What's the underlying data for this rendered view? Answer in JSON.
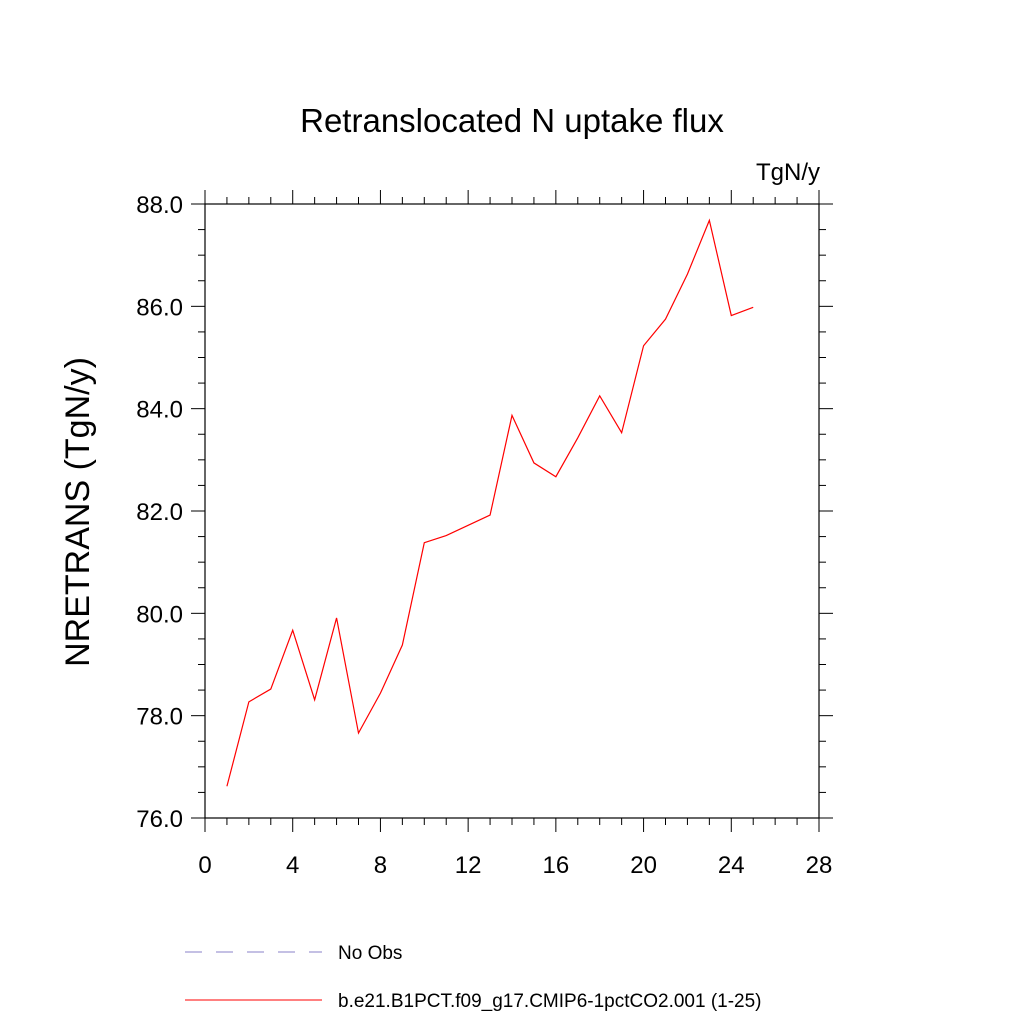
{
  "chart_data": {
    "type": "line",
    "title": "Retranslocated N uptake flux",
    "units_label": "TgN/y",
    "ylabel": "NRETRANS  (TgN/y)",
    "xlabel": "",
    "xlim": [
      0,
      28
    ],
    "ylim": [
      76.0,
      88.0
    ],
    "x_ticks": [
      "0",
      "4",
      "8",
      "12",
      "16",
      "20",
      "24",
      "28"
    ],
    "y_ticks": [
      "76.0",
      "78.0",
      "80.0",
      "82.0",
      "84.0",
      "86.0",
      "88.0"
    ],
    "grid": false,
    "legend_position": "bottom",
    "series": [
      {
        "name": "b.e21.B1PCT.f09_g17.CMIP6-1pctCO2.001 (1-25)",
        "color": "#ff0000",
        "dash": "solid",
        "x": [
          1,
          2,
          3,
          4,
          5,
          6,
          7,
          8,
          9,
          10,
          11,
          12,
          13,
          14,
          15,
          16,
          17,
          18,
          19,
          20,
          21,
          22,
          23,
          24,
          25
        ],
        "y": [
          76.62,
          78.27,
          78.52,
          79.67,
          78.31,
          79.91,
          77.66,
          78.44,
          79.38,
          81.38,
          81.52,
          81.72,
          81.92,
          83.87,
          82.94,
          82.67,
          83.43,
          84.25,
          83.53,
          85.23,
          85.75,
          86.63,
          87.68,
          85.82,
          85.98
        ]
      }
    ],
    "legend_entries": [
      {
        "label": "No Obs",
        "color": "#8a82c8",
        "dash": "dashed"
      },
      {
        "label": "b.e21.B1PCT.f09_g17.CMIP6-1pctCO2.001 (1-25)",
        "color": "#ff0000",
        "dash": "solid"
      }
    ]
  }
}
